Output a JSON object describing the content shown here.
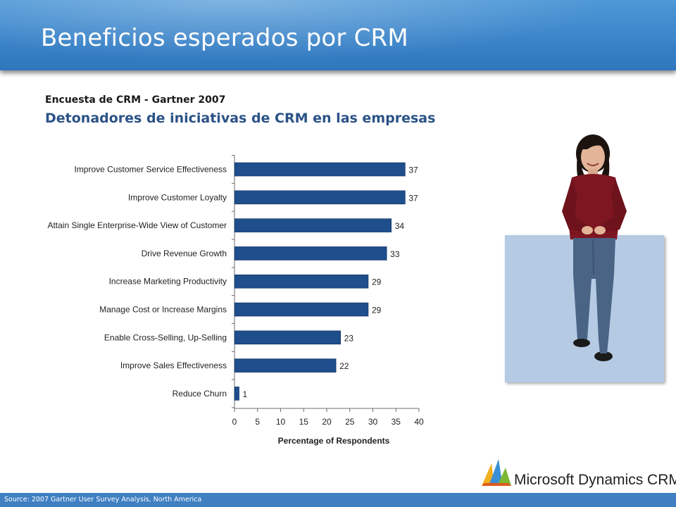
{
  "slide": {
    "title": "Beneficios esperados por CRM",
    "subtitle_small": "Encuesta de CRM  - Gartner 2007",
    "subtitle_large": "Detonadores de iniciativas de CRM en las empresas",
    "source": "Source: 2007 Gartner User Survey Analysis, North America",
    "logo_text": "Microsoft Dynamics CRM"
  },
  "colors": {
    "header": "#3f88cc",
    "bar": "#1f4e8c",
    "subtitle_large": "#2b5287",
    "photo_panel": "#b5cae3"
  },
  "chart_data": {
    "type": "bar",
    "orientation": "horizontal",
    "categories": [
      "Improve Customer Service Effectiveness",
      "Improve Customer Loyalty",
      "Attain Single Enterprise-Wide View of Customer",
      "Drive Revenue Growth",
      "Increase Marketing Productivity",
      "Manage Cost or Increase Margins",
      "Enable Cross-Selling, Up-Selling",
      "Improve Sales Effectiveness",
      "Reduce Churn"
    ],
    "values": [
      37,
      37,
      34,
      33,
      29,
      29,
      23,
      22,
      1
    ],
    "xlabel": "Percentage of Respondents",
    "ylabel": "",
    "xlim": [
      0,
      40
    ],
    "xticks": [
      "0",
      "5",
      "10",
      "15",
      "20",
      "25",
      "30",
      "35",
      "40"
    ],
    "data_labels": true,
    "grid": false,
    "legend": "none"
  }
}
